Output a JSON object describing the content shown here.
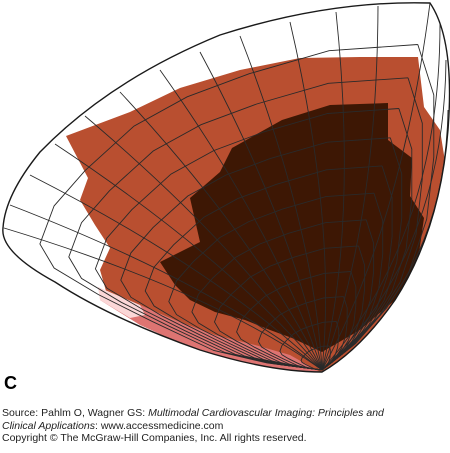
{
  "figure": {
    "panel_letter": "C",
    "colors": {
      "white": "#ffffff",
      "rust": "#b94f30",
      "dark_brown": "#3d1704",
      "salmon": "#de7472",
      "pale_pink": "#fbd7d7",
      "grid_line": "#2a2a2a"
    },
    "regions": [
      {
        "name": "basal-outer-ring",
        "color": "white"
      },
      {
        "name": "moderate-zone",
        "color": "rust"
      },
      {
        "name": "severe-zone",
        "color": "dark_brown"
      },
      {
        "name": "mild-zone",
        "color": "salmon"
      },
      {
        "name": "minimal-zone",
        "color": "pale_pink"
      }
    ]
  },
  "caption": {
    "source_prefix": "Source: Pahlm O, Wagner GS: ",
    "source_title_1": "Multimodal Cardiovascular Imaging: Principles and",
    "source_title_2": "Clinical Applications",
    "source_suffix": ": www.accessmedicine.com",
    "copyright": "Copyright © The McGraw-Hill Companies, Inc. All rights reserved."
  }
}
